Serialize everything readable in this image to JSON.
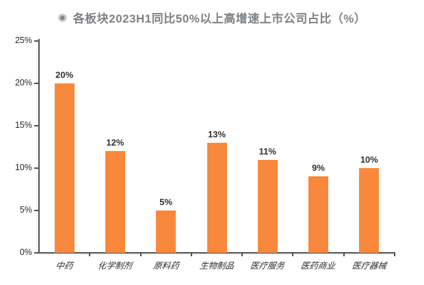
{
  "title": {
    "icon": "◉",
    "text": "各板块2023H1同比50%以上高增速上市公司占比（%）"
  },
  "colors": {
    "bar": "#f8883c",
    "axis": "#4f4f4f",
    "title_text": "#7e8083",
    "tick_label": "#262626",
    "value_label": "#303030"
  },
  "chart_data": {
    "type": "bar",
    "title": "各板块2023H1同比50%以上高增速上市公司占比（%）",
    "categories": [
      "中药",
      "化学制剂",
      "原料药",
      "生物制品",
      "医疗服务",
      "医药商业",
      "医疗器械"
    ],
    "values": [
      20,
      12,
      5,
      13,
      11,
      9,
      10
    ],
    "data_labels": [
      "20%",
      "12%",
      "5%",
      "13%",
      "11%",
      "9%",
      "10%"
    ],
    "unit": "%",
    "xlabel": "",
    "ylabel": "",
    "ylim": [
      0,
      25
    ],
    "yticks": [
      0,
      5,
      10,
      15,
      20,
      25
    ],
    "ytick_labels": [
      "0%",
      "5%",
      "10%",
      "15%",
      "20%",
      "25%"
    ],
    "grid": false,
    "legend": null
  }
}
